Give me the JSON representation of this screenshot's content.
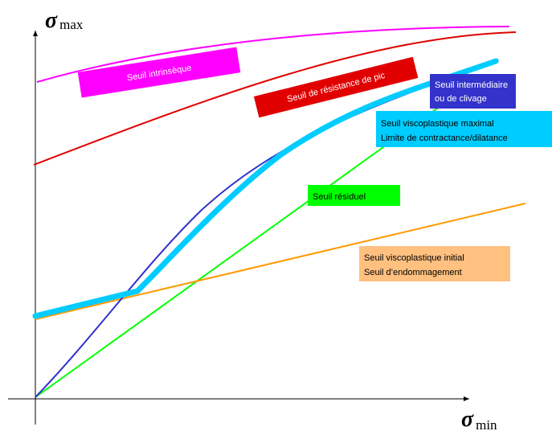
{
  "axes": {
    "y_symbol": "σ",
    "y_subscript": "max",
    "x_symbol": "σ",
    "x_subscript": "min"
  },
  "labels": {
    "intrinsic": "Seuil intrinsèque",
    "peak": "Seuil de résistance de pic",
    "intermediate_line1": "Seuil intermédiaire",
    "intermediate_line2": "ou de clivage",
    "viscoplastic_max_line1": "Seuil viscoplastique maximal",
    "viscoplastic_max_line2": "Limite de contractance/dilatance",
    "residual": "Seuil résiduel",
    "viscoplastic_initial_line1": "Seuil viscoplastique initial",
    "viscoplastic_initial_line2": "Seuil d’endommagement"
  },
  "colors": {
    "intrinsic": "#ff00ff",
    "peak": "#e00000",
    "intermediate": "#3333cc",
    "viscoplastic_max": "#00ccff",
    "residual": "#00ff00",
    "viscoplastic_initial": "#ff9900",
    "viscoplastic_initial_label_bg": "#ffc080"
  }
}
